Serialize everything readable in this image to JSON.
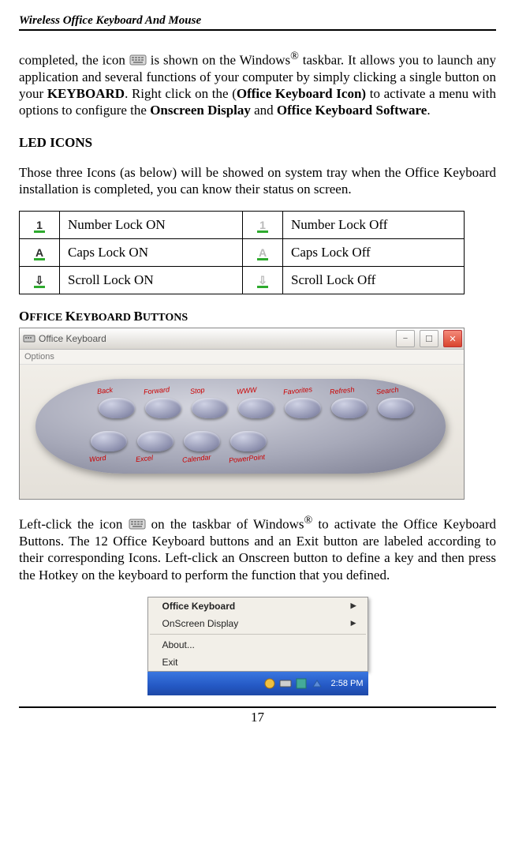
{
  "header": {
    "title": "Wireless Office Keyboard And Mouse"
  },
  "para1": {
    "t1": "completed, the icon ",
    "t2": " is shown on the Windows",
    "sup1": "®",
    "t3": " taskbar. It allows you to launch any application and several functions of your computer by simply clicking a single button on your ",
    "b1": "KEYBOARD",
    "t4": ". Right click on the (",
    "b2": "Office Keyboard Icon)",
    "t5": " to activate a menu with options to configure the ",
    "b3": "Onscreen Display",
    "t6": " and ",
    "b4": "Office Keyboard Software",
    "t7": "."
  },
  "ledHeading": "LED ICONS",
  "ledIntro": "Those three Icons (as below) will be showed on system tray when the Office Keyboard installation is completed, you can know their status on screen.",
  "ledTable": {
    "rows": [
      {
        "onGlyph": "1",
        "onLabel": "Number Lock ON",
        "offGlyph": "1",
        "offLabel": "Number Lock Off"
      },
      {
        "onGlyph": "A",
        "onLabel": "Caps Lock ON",
        "offGlyph": "A",
        "offLabel": "Caps Lock Off"
      },
      {
        "onGlyph": "⇩",
        "onLabel": "Scroll Lock ON",
        "offGlyph": "⇩",
        "offLabel": "Scroll Lock Off"
      }
    ],
    "onColor": "#2a2a2a",
    "offColor": "#b9b9b9",
    "barColor": "#2eaa2e"
  },
  "okbHeading": "OFFICE KEYBOARD BUTTONS",
  "okbWindow": {
    "title": "Office Keyboard",
    "menu": "Options",
    "topLabels": [
      "Back",
      "Forward",
      "Stop",
      "WWW",
      "Favorites",
      "Refresh",
      "Search"
    ],
    "botLabels": [
      "Word",
      "Excel",
      "Calendar",
      "PowerPoint"
    ]
  },
  "para2": {
    "t1": "Left-click the icon ",
    "t2": " on the taskbar of Windows",
    "sup1": "®",
    "t3": " to activate the Office Keyboard Buttons. The 12 Office Keyboard buttons and an Exit button are labeled according to their corresponding Icons. Left-click an Onscreen button to define a key and then press the Hotkey on the keyboard to perform the function that you defined."
  },
  "contextMenu": {
    "items": [
      {
        "label": "Office Keyboard",
        "bold": true,
        "arrow": true
      },
      {
        "label": "OnScreen Display",
        "bold": false,
        "arrow": true
      },
      {
        "sep": true
      },
      {
        "label": "About...",
        "bold": false,
        "arrow": false
      },
      {
        "label": "Exit",
        "bold": false,
        "arrow": false
      }
    ],
    "clock": "2:58 PM"
  },
  "pageNumber": "17"
}
